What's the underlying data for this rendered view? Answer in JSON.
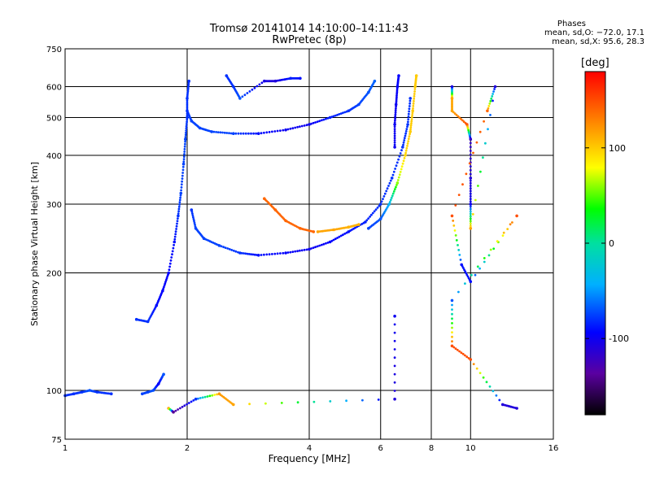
{
  "header": {
    "title_line1": "Tromsø 20141014 14:10:00–14:11:43",
    "title_line2": "RwPretec (8p)",
    "stats_label": "Phases",
    "stats_o": "mean, sd,O: −72.0, 17.1",
    "stats_x": "mean, sd,X:  95.6, 28.3"
  },
  "chart_data": {
    "type": "scatter",
    "title": "Tromsø 20141014 14:10:00–14:11:43",
    "subtitle": "RwPretec (8p)",
    "xlabel": "Frequency [MHz]",
    "ylabel": "Stationary phase Virtual Height [km]",
    "x_scale": "log",
    "y_scale": "log",
    "xlim": [
      1,
      16
    ],
    "ylim": [
      75,
      750
    ],
    "x_ticks": [
      1,
      2,
      4,
      6,
      8,
      10,
      16
    ],
    "x_tick_labels": [
      "1",
      "2",
      "4",
      "6",
      "8",
      "10",
      "16"
    ],
    "y_ticks": [
      75,
      100,
      200,
      300,
      400,
      500,
      600,
      750
    ],
    "y_tick_labels": [
      "75",
      "100",
      "200",
      "300",
      "400",
      "500",
      "600",
      "750"
    ],
    "grid": true,
    "colorbar": {
      "label": "[deg]",
      "range": [
        -180,
        180
      ],
      "ticks": [
        100,
        0,
        -100
      ],
      "tick_labels": [
        "100",
        "0",
        "-100"
      ]
    },
    "series": [
      {
        "values": [
          [
            1.0,
            97,
            -80
          ],
          [
            1.05,
            98,
            -80
          ],
          [
            1.1,
            99,
            -80
          ],
          [
            1.15,
            100,
            -70
          ],
          [
            1.2,
            99,
            -80
          ],
          [
            1.3,
            98,
            -80
          ]
        ]
      },
      {
        "values": [
          [
            1.55,
            98,
            -75
          ],
          [
            1.6,
            99,
            -75
          ],
          [
            1.65,
            100,
            -70
          ],
          [
            1.7,
            104,
            -95
          ],
          [
            1.75,
            110,
            -70
          ]
        ]
      },
      {
        "values": [
          [
            1.5,
            152,
            -80
          ],
          [
            1.6,
            150,
            -80
          ],
          [
            1.68,
            165,
            -90
          ],
          [
            1.74,
            180,
            -95
          ],
          [
            1.8,
            200,
            -95
          ],
          [
            1.86,
            240,
            -90
          ],
          [
            1.9,
            280,
            -80
          ],
          [
            1.93,
            320,
            -75
          ],
          [
            1.96,
            380,
            -75
          ],
          [
            1.98,
            440,
            -75
          ],
          [
            2.0,
            500,
            -80
          ],
          [
            2.0,
            560,
            -80
          ],
          [
            2.02,
            620,
            -80
          ]
        ]
      },
      {
        "values": [
          [
            2.0,
            520,
            -80
          ],
          [
            2.05,
            490,
            -75
          ],
          [
            2.15,
            470,
            -75
          ],
          [
            2.3,
            460,
            -75
          ],
          [
            2.6,
            455,
            -75
          ],
          [
            3.0,
            455,
            -90
          ],
          [
            3.5,
            465,
            -100
          ],
          [
            4.0,
            480,
            -100
          ],
          [
            4.5,
            500,
            -85
          ],
          [
            5.0,
            520,
            -80
          ],
          [
            5.3,
            540,
            -75
          ],
          [
            5.6,
            580,
            -70
          ],
          [
            5.8,
            620,
            -65
          ]
        ]
      },
      {
        "values": [
          [
            2.05,
            290,
            -80
          ],
          [
            2.1,
            260,
            -75
          ],
          [
            2.2,
            245,
            -75
          ],
          [
            2.4,
            235,
            -75
          ],
          [
            2.7,
            225,
            -80
          ],
          [
            3.0,
            222,
            -90
          ],
          [
            3.5,
            225,
            -95
          ],
          [
            4.0,
            230,
            -100
          ],
          [
            4.5,
            240,
            -95
          ],
          [
            5.0,
            255,
            -90
          ],
          [
            5.5,
            270,
            -85
          ],
          [
            6.0,
            300,
            -80
          ],
          [
            6.4,
            350,
            -80
          ],
          [
            6.8,
            420,
            -80
          ],
          [
            7.0,
            480,
            -80
          ],
          [
            7.1,
            560,
            -80
          ]
        ]
      },
      {
        "values": [
          [
            5.6,
            260,
            -75
          ],
          [
            6.0,
            275,
            -70
          ],
          [
            6.3,
            300,
            -40
          ],
          [
            6.6,
            340,
            60
          ],
          [
            6.9,
            400,
            95
          ],
          [
            7.1,
            460,
            100
          ],
          [
            7.2,
            520,
            100
          ],
          [
            7.3,
            600,
            100
          ],
          [
            7.35,
            640,
            100
          ]
        ]
      },
      {
        "values": [
          [
            3.1,
            310,
            140
          ],
          [
            3.3,
            290,
            140
          ],
          [
            3.5,
            272,
            140
          ],
          [
            3.8,
            260,
            140
          ],
          [
            4.1,
            255,
            140
          ]
        ]
      },
      {
        "values": [
          [
            4.2,
            255,
            115
          ],
          [
            4.6,
            258,
            115
          ],
          [
            5.0,
            262,
            110
          ],
          [
            5.3,
            266,
            110
          ]
        ]
      },
      {
        "values": [
          [
            6.5,
            420,
            -100
          ],
          [
            6.5,
            480,
            -100
          ],
          [
            6.55,
            540,
            -100
          ],
          [
            6.6,
            600,
            -95
          ],
          [
            6.65,
            640,
            -95
          ]
        ]
      },
      {
        "values": [
          [
            2.5,
            640,
            -80
          ],
          [
            2.6,
            600,
            -80
          ],
          [
            2.7,
            560,
            -70
          ],
          [
            3.1,
            620,
            -105
          ],
          [
            3.3,
            620,
            -110
          ],
          [
            3.6,
            630,
            -85
          ],
          [
            3.8,
            630,
            -90
          ]
        ]
      },
      {
        "values": [
          [
            9.0,
            600,
            -110
          ],
          [
            9.0,
            560,
            115
          ],
          [
            9.0,
            520,
            115
          ],
          [
            9.8,
            480,
            150
          ],
          [
            10.0,
            440,
            -120
          ],
          [
            10.0,
            350,
            -110
          ],
          [
            10.0,
            300,
            -100
          ],
          [
            10.0,
            260,
            115
          ],
          [
            11.5,
            600,
            -110
          ],
          [
            11.0,
            520,
            140
          ],
          [
            9.0,
            280,
            150
          ],
          [
            9.5,
            210,
            -90
          ],
          [
            10.0,
            190,
            -90
          ],
          [
            13.0,
            280,
            150
          ],
          [
            9.0,
            170,
            -70
          ],
          [
            9.0,
            130,
            150
          ],
          [
            10.0,
            120,
            150
          ],
          [
            12.0,
            92,
            -110
          ],
          [
            13.0,
            90,
            -110
          ]
        ]
      },
      {
        "values": [
          [
            1.8,
            90,
            120
          ],
          [
            1.85,
            88,
            -140
          ],
          [
            2.1,
            95,
            -80
          ],
          [
            2.4,
            98,
            120
          ],
          [
            2.6,
            92,
            115
          ],
          [
            6.5,
            95,
            -110
          ],
          [
            6.5,
            155,
            -100
          ]
        ]
      }
    ]
  }
}
